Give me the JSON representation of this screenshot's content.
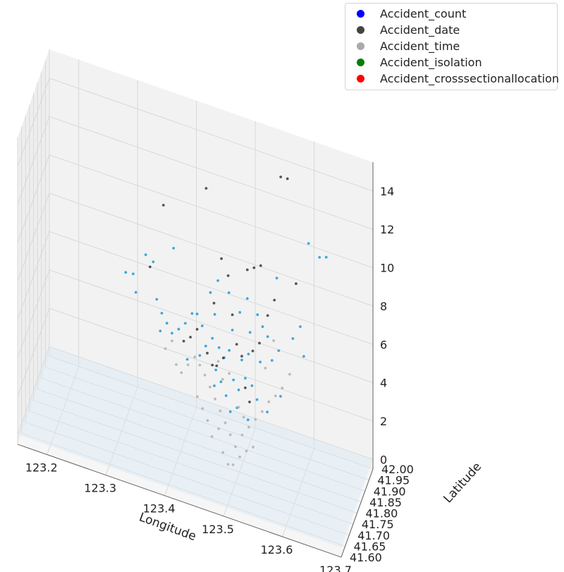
{
  "chart_data": {
    "type": "scatter",
    "title": "",
    "xlabel": "Longitude",
    "ylabel": "Latitude",
    "zlabel": "",
    "xlim": [
      123.15,
      123.7
    ],
    "ylim": [
      41.6,
      42.0
    ],
    "zlim": [
      -0.5,
      15.5
    ],
    "x_ticks": [
      "123.2",
      "123.3",
      "123.4",
      "123.5",
      "123.6",
      "123.7"
    ],
    "y_ticks": [
      "41.60",
      "41.65",
      "41.70",
      "41.75",
      "41.80",
      "41.85",
      "41.90",
      "41.95",
      "42.00"
    ],
    "z_ticks": [
      "0",
      "2",
      "4",
      "6",
      "8",
      "10",
      "12",
      "14"
    ],
    "grid": true,
    "legend_position": "top-right",
    "series": [
      {
        "name": "Accident_count",
        "legend_color": "#0000ff",
        "point_color": "#2b9fd9",
        "points": [
          [
            123.44,
            41.82,
            5.2
          ],
          [
            123.45,
            41.83,
            5.6
          ],
          [
            123.46,
            41.84,
            5.1
          ],
          [
            123.47,
            41.83,
            4.8
          ],
          [
            123.48,
            41.82,
            5.4
          ],
          [
            123.49,
            41.8,
            4.2
          ],
          [
            123.5,
            41.79,
            3.9
          ],
          [
            123.51,
            41.8,
            4.5
          ],
          [
            123.52,
            41.81,
            4.1
          ],
          [
            123.53,
            41.8,
            3.6
          ],
          [
            123.5,
            41.77,
            3.2
          ],
          [
            123.49,
            41.76,
            3.0
          ],
          [
            123.48,
            41.78,
            3.5
          ],
          [
            123.47,
            41.79,
            4.0
          ],
          [
            123.46,
            41.8,
            4.4
          ],
          [
            123.43,
            41.85,
            5.8
          ],
          [
            123.42,
            41.86,
            6.2
          ],
          [
            123.41,
            41.87,
            6.0
          ],
          [
            123.4,
            41.86,
            5.5
          ],
          [
            123.39,
            41.85,
            5.2
          ],
          [
            123.38,
            41.84,
            5.0
          ],
          [
            123.37,
            41.85,
            5.3
          ],
          [
            123.36,
            41.86,
            5.6
          ],
          [
            123.35,
            41.87,
            6.1
          ],
          [
            123.55,
            41.84,
            5.4
          ],
          [
            123.56,
            41.85,
            5.9
          ],
          [
            123.54,
            41.86,
            6.3
          ],
          [
            123.53,
            41.87,
            6.6
          ],
          [
            123.52,
            41.88,
            7.0
          ],
          [
            123.51,
            41.86,
            6.2
          ],
          [
            123.44,
            41.88,
            7.3
          ],
          [
            123.45,
            41.9,
            7.8
          ],
          [
            123.47,
            41.89,
            7.5
          ],
          [
            123.49,
            41.88,
            6.8
          ],
          [
            123.5,
            41.9,
            7.4
          ],
          [
            123.58,
            41.88,
            6.4
          ],
          [
            123.59,
            41.9,
            6.9
          ],
          [
            123.6,
            41.87,
            5.8
          ],
          [
            123.33,
            41.88,
            8.1
          ],
          [
            123.34,
            41.9,
            7.6
          ],
          [
            123.36,
            41.84,
            4.9
          ],
          [
            123.46,
            41.78,
            3.8
          ],
          [
            123.52,
            41.76,
            2.9
          ],
          [
            123.55,
            41.78,
            3.4
          ],
          [
            123.57,
            41.8,
            4.2
          ],
          [
            123.45,
            41.86,
            6.5
          ],
          [
            123.43,
            41.82,
            4.6
          ],
          [
            123.41,
            41.81,
            4.3
          ],
          [
            123.48,
            41.86,
            6.0
          ],
          [
            123.53,
            41.84,
            5.1
          ],
          [
            123.62,
            41.92,
            10.6
          ],
          [
            123.63,
            41.93,
            10.6
          ],
          [
            123.6,
            41.93,
            11.0
          ],
          [
            123.38,
            41.86,
            9.2
          ],
          [
            123.55,
            41.9,
            9.0
          ],
          [
            123.3,
            41.85,
            7.2
          ],
          [
            123.31,
            41.87,
            7.0
          ],
          [
            123.32,
            41.83,
            6.6
          ],
          [
            123.5,
            41.83,
            5.0
          ],
          [
            123.51,
            41.84,
            5.3
          ]
        ]
      },
      {
        "name": "Accident_date",
        "legend_color": "#444444",
        "point_color": "#444444",
        "points": [
          [
            123.55,
            41.95,
            13.7
          ],
          [
            123.56,
            41.96,
            13.6
          ],
          [
            123.43,
            41.9,
            12.4
          ],
          [
            123.36,
            41.88,
            11.0
          ],
          [
            123.5,
            41.9,
            8.9
          ],
          [
            123.51,
            41.91,
            9.0
          ],
          [
            123.52,
            41.92,
            9.1
          ],
          [
            123.46,
            41.87,
            9.4
          ],
          [
            123.47,
            41.88,
            8.5
          ],
          [
            123.45,
            41.85,
            7.2
          ],
          [
            123.48,
            41.86,
            6.8
          ],
          [
            123.49,
            41.84,
            5.6
          ],
          [
            123.5,
            41.83,
            5.2
          ],
          [
            123.47,
            41.82,
            4.9
          ],
          [
            123.46,
            41.81,
            4.5
          ],
          [
            123.52,
            41.82,
            5.8
          ],
          [
            123.53,
            41.83,
            6.2
          ],
          [
            123.4,
            41.84,
            4.8
          ],
          [
            123.41,
            41.85,
            5.0
          ],
          [
            123.42,
            41.86,
            5.4
          ],
          [
            123.54,
            41.86,
            7.4
          ],
          [
            123.55,
            41.87,
            8.2
          ],
          [
            123.34,
            41.86,
            7.8
          ],
          [
            123.58,
            41.92,
            8.8
          ],
          [
            123.44,
            41.84,
            4.6
          ],
          [
            123.45,
            41.83,
            4.2
          ],
          [
            123.51,
            41.8,
            4.0
          ],
          [
            123.52,
            41.78,
            3.6
          ]
        ]
      },
      {
        "name": "Accident_time",
        "legend_color": "#aaaaaa",
        "point_color": "#b4b4b4",
        "points": [
          [
            123.45,
            41.8,
            3.4
          ],
          [
            123.46,
            41.79,
            3.0
          ],
          [
            123.47,
            41.78,
            2.6
          ],
          [
            123.48,
            41.77,
            2.2
          ],
          [
            123.49,
            41.76,
            1.8
          ],
          [
            123.5,
            41.75,
            1.4
          ],
          [
            123.51,
            41.76,
            2.0
          ],
          [
            123.52,
            41.77,
            2.4
          ],
          [
            123.53,
            41.78,
            2.8
          ],
          [
            123.44,
            41.81,
            3.8
          ],
          [
            123.43,
            41.82,
            4.1
          ],
          [
            123.42,
            41.83,
            4.3
          ],
          [
            123.41,
            41.82,
            3.9
          ],
          [
            123.4,
            41.81,
            3.5
          ],
          [
            123.39,
            41.82,
            3.7
          ],
          [
            123.54,
            41.79,
            3.2
          ],
          [
            123.55,
            41.8,
            3.7
          ],
          [
            123.56,
            41.81,
            4.0
          ],
          [
            123.48,
            41.74,
            1.0
          ],
          [
            123.49,
            41.73,
            0.6
          ],
          [
            123.5,
            41.72,
            0.8
          ],
          [
            123.51,
            41.73,
            1.2
          ],
          [
            123.46,
            41.75,
            1.5
          ],
          [
            123.47,
            41.76,
            1.9
          ],
          [
            123.52,
            41.74,
            1.5
          ],
          [
            123.53,
            41.75,
            1.7
          ],
          [
            123.44,
            41.78,
            2.4
          ],
          [
            123.45,
            41.77,
            2.0
          ],
          [
            123.43,
            41.79,
            2.8
          ],
          [
            123.57,
            41.82,
            4.4
          ],
          [
            123.58,
            41.84,
            5.0
          ],
          [
            123.38,
            41.84,
            4.6
          ],
          [
            123.37,
            41.83,
            4.2
          ],
          [
            123.5,
            41.79,
            3.0
          ],
          [
            123.51,
            41.78,
            2.7
          ],
          [
            123.47,
            41.81,
            3.9
          ],
          [
            123.48,
            41.82,
            4.2
          ],
          [
            123.54,
            41.83,
            5.0
          ],
          [
            123.55,
            41.86,
            6.2
          ],
          [
            123.46,
            41.83,
            4.5
          ]
        ]
      },
      {
        "name": "Accident_isolation",
        "legend_color": "#008000",
        "point_color": "#33a661",
        "points": []
      },
      {
        "name": "Accident_crosssectionallocation",
        "legend_color": "#ff0000",
        "point_color": "#ff0000",
        "points": []
      }
    ]
  }
}
